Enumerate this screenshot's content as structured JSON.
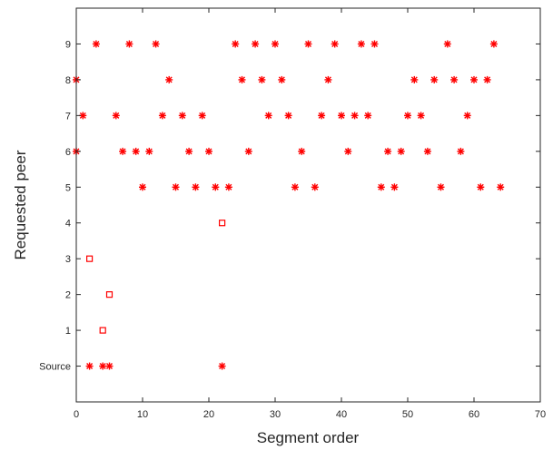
{
  "chart_data": {
    "type": "scatter",
    "xlabel": "Segment order",
    "ylabel": "Requested peer",
    "xlim": [
      0,
      70
    ],
    "ylim": [
      -1,
      10
    ],
    "x_ticks": [
      0,
      10,
      20,
      30,
      40,
      50,
      60,
      70
    ],
    "y_ticks": [
      {
        "value": 0,
        "label": "Source"
      },
      {
        "value": 1,
        "label": "1"
      },
      {
        "value": 2,
        "label": "2"
      },
      {
        "value": 3,
        "label": "3"
      },
      {
        "value": 4,
        "label": "4"
      },
      {
        "value": 5,
        "label": "5"
      },
      {
        "value": 6,
        "label": "6"
      },
      {
        "value": 7,
        "label": "7"
      },
      {
        "value": 8,
        "label": "8"
      },
      {
        "value": 9,
        "label": "9"
      }
    ],
    "grid": false,
    "series": [
      {
        "marker": "asterisk",
        "color": "#ff0000",
        "points": [
          [
            0,
            6
          ],
          [
            0,
            8
          ],
          [
            1,
            7
          ],
          [
            2,
            0
          ],
          [
            3,
            9
          ],
          [
            4,
            0
          ],
          [
            5,
            0
          ],
          [
            6,
            7
          ],
          [
            7,
            6
          ],
          [
            8,
            9
          ],
          [
            9,
            6
          ],
          [
            10,
            5
          ],
          [
            11,
            6
          ],
          [
            12,
            9
          ],
          [
            13,
            7
          ],
          [
            14,
            8
          ],
          [
            15,
            5
          ],
          [
            16,
            7
          ],
          [
            17,
            6
          ],
          [
            18,
            5
          ],
          [
            19,
            7
          ],
          [
            20,
            6
          ],
          [
            21,
            5
          ],
          [
            22,
            0
          ],
          [
            23,
            5
          ],
          [
            24,
            9
          ],
          [
            25,
            8
          ],
          [
            26,
            6
          ],
          [
            27,
            9
          ],
          [
            28,
            8
          ],
          [
            29,
            7
          ],
          [
            30,
            9
          ],
          [
            31,
            8
          ],
          [
            32,
            7
          ],
          [
            33,
            5
          ],
          [
            34,
            6
          ],
          [
            35,
            9
          ],
          [
            36,
            5
          ],
          [
            37,
            7
          ],
          [
            38,
            8
          ],
          [
            39,
            9
          ],
          [
            40,
            7
          ],
          [
            41,
            6
          ],
          [
            42,
            7
          ],
          [
            43,
            9
          ],
          [
            44,
            7
          ],
          [
            45,
            9
          ],
          [
            46,
            5
          ],
          [
            47,
            6
          ],
          [
            48,
            5
          ],
          [
            49,
            6
          ],
          [
            50,
            7
          ],
          [
            51,
            8
          ],
          [
            52,
            7
          ],
          [
            53,
            6
          ],
          [
            54,
            8
          ],
          [
            55,
            5
          ],
          [
            56,
            9
          ],
          [
            57,
            8
          ],
          [
            58,
            6
          ],
          [
            59,
            7
          ],
          [
            60,
            8
          ],
          [
            61,
            5
          ],
          [
            62,
            8
          ],
          [
            63,
            9
          ],
          [
            64,
            5
          ]
        ]
      },
      {
        "marker": "square",
        "color": "#ff0000",
        "points": [
          [
            2,
            3
          ],
          [
            4,
            1
          ],
          [
            5,
            2
          ],
          [
            22,
            4
          ]
        ]
      }
    ]
  }
}
